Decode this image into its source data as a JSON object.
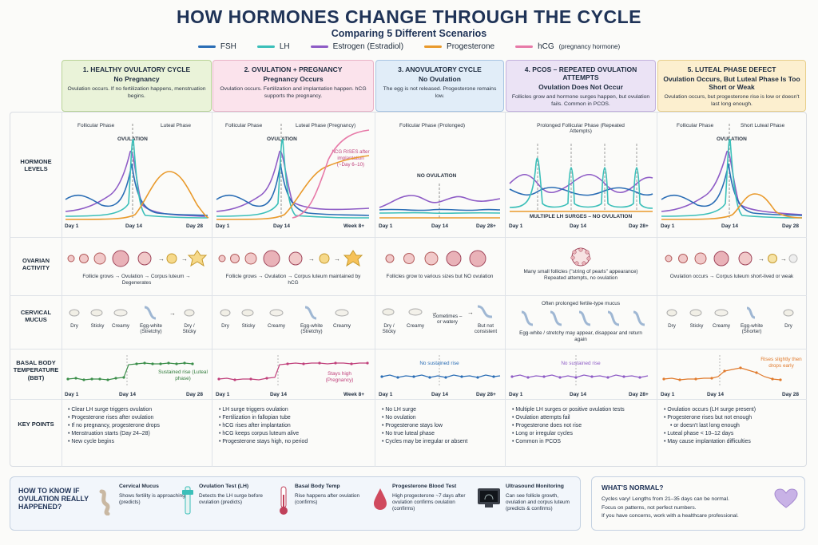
{
  "title": "HOW HORMONES CHANGE THROUGH THE CYCLE",
  "subtitle": "Comparing 5 Different Scenarios",
  "legend": [
    {
      "name": "FSH",
      "color": "#2a6db5"
    },
    {
      "name": "LH",
      "color": "#3bbfb9"
    },
    {
      "name": "Estrogen (Estradiol)",
      "color": "#8e5cc6"
    },
    {
      "name": "Progesterone",
      "color": "#e99a2c"
    },
    {
      "name": "hCG",
      "sub": "(pregnancy hormone)",
      "color": "#e77aa8"
    }
  ],
  "row_labels": {
    "hormones": "HORMONE LEVELS",
    "ovarian": "OVARIAN ACTIVITY",
    "mucus": "CERVICAL MUCUS",
    "bbt": "BASAL BODY TEMPERATURE (BBT)",
    "key": "KEY POINTS"
  },
  "columns": [
    {
      "title": "1. HEALTHY OVULATORY CYCLE",
      "sub": "No Pregnancy",
      "desc": "Ovulation occurs. If no fertilization happens, menstruation begins.",
      "head_color": "#eaf3d9",
      "phase_left": "Follicular Phase",
      "phase_right": "Luteal Phase",
      "marker": "OVULATION",
      "axis": [
        "Day 1",
        "Day 14",
        "Day 28"
      ],
      "ovarian_text": "Follicle grows → Ovulation → Corpus luteum → Degenerates",
      "mucus": [
        "Dry",
        "Sticky",
        "Creamy",
        "Egg-white (Stretchy)",
        "Dry / Sticky"
      ],
      "bbt_note": "Sustained rise (Luteal phase)",
      "bbt_axis": [
        "Day 1",
        "Day 14",
        "Day 28"
      ],
      "key_points": [
        "Clear LH surge triggers ovulation",
        "Progesterone rises after ovulation",
        "If no pregnancy, progesterone drops",
        "Menstruation starts (Day 24–28)",
        "New cycle begins"
      ]
    },
    {
      "title": "2. OVULATION + PREGNANCY",
      "sub": "Pregnancy Occurs",
      "desc": "Ovulation occurs. Fertilization and implantation happen. hCG supports the pregnancy.",
      "head_color": "#fbe3ec",
      "phase_left": "Follicular Phase",
      "phase_right": "Luteal Phase (Pregnancy)",
      "marker": "OVULATION",
      "hcg_note": "hCG RISES after implantation (~Day 6–10)",
      "axis": [
        "Day 1",
        "Day 14",
        "Week 8+"
      ],
      "ovarian_text": "Follicle grows → Ovulation → Corpus luteum maintained by hCG",
      "mucus": [
        "Dry",
        "Sticky",
        "Creamy",
        "Egg-white (Stretchy)",
        "Creamy"
      ],
      "bbt_note": "Stays high (Pregnancy)",
      "bbt_axis": [
        "Day 1",
        "Day 14",
        "Week 8+"
      ],
      "key_points": [
        "LH surge triggers ovulation",
        "Fertilization in fallopian tube",
        "hCG rises after implantation",
        "hCG keeps corpus luteum alive",
        "Progesterone stays high, no period"
      ]
    },
    {
      "title": "3. ANOVULATORY CYCLE",
      "sub": "No Ovulation",
      "desc": "The egg is not released. Progesterone remains low.",
      "head_color": "#e1edf8",
      "phase_left": "Follicular Phase (Prolonged)",
      "marker": "NO OVULATION",
      "axis": [
        "Day 1",
        "Day 14",
        "Day 28+"
      ],
      "ovarian_text": "Follicles grow to various sizes but NO ovulation",
      "mucus": [
        "Dry / Sticky",
        "Creamy",
        "Sometimes – or watery",
        "But not consistent"
      ],
      "bbt_note": "No sustained rise",
      "bbt_axis": [
        "Day 1",
        "Day 14",
        "Day 28+"
      ],
      "key_points": [
        "No LH surge",
        "No ovulation",
        "Progesterone stays low",
        "No true luteal phase",
        "Cycles may be irregular or absent"
      ]
    },
    {
      "title": "4. PCOS – REPEATED OVULATION ATTEMPTS",
      "sub": "Ovulation Does Not Occur",
      "desc": "Follicles grow and hormone surges happen, but ovulation fails. Common in PCOS.",
      "head_color": "#ebe3f5",
      "phase_left": "Prolonged Follicular Phase (Repeated Attempts)",
      "marker": "MULTIPLE LH SURGES – NO OVULATION",
      "axis": [
        "Day 1",
        "Day 14",
        "Day 28+"
      ],
      "ovarian_text": "Many small follicles (\"string of pearls\" appearance) Repeated attempts, no ovulation",
      "mucus_top": "Often prolonged fertile-type mucus",
      "mucus_note": "Egg-white / stretchy may appear, disappear and return again",
      "bbt_note": "No sustained rise",
      "bbt_axis": [
        "Day 1",
        "Day 14",
        "Day 28+"
      ],
      "key_points": [
        "Multiple LH surges or positive ovulation tests",
        "Ovulation attempts fail",
        "Progesterone does not rise",
        "Long or irregular cycles",
        "Common in PCOS"
      ]
    },
    {
      "title": "5. LUTEAL PHASE DEFECT",
      "sub": "Ovulation Occurs, But Luteal Phase Is Too Short or Weak",
      "desc": "Ovulation occurs, but progesterone rise is low or doesn't last long enough.",
      "head_color": "#fcefcf",
      "phase_left": "Follicular Phase",
      "phase_right": "Short Luteal Phase",
      "marker": "OVULATION",
      "axis": [
        "Day 1",
        "Day 14",
        "Day 28"
      ],
      "ovarian_text": "Ovulation occurs → Corpus luteum short-lived or weak",
      "mucus": [
        "Dry",
        "Sticky",
        "Creamy",
        "Egg-white (Shorter)",
        "Dry"
      ],
      "bbt_note": "Rises slightly then drops early",
      "bbt_axis": [
        "Day 1",
        "Day 14",
        "Day 28"
      ],
      "key_points": [
        "Ovulation occurs (LH surge present)",
        "Progesterone rises but not enough",
        "or doesn't last long enough",
        "Luteal phase < 10–12 days",
        "May cause implantation difficulties"
      ]
    }
  ],
  "howto": {
    "title": "HOW TO KNOW IF OVULATION REALLY HAPPENED?",
    "methods": [
      {
        "name": "Cervical Mucus",
        "text": "Shows fertility is approaching (predicts)",
        "icon": "mucus-icon"
      },
      {
        "name": "Ovulation Test (LH)",
        "text": "Detects the LH surge before ovulation (predicts)",
        "icon": "test-strip-icon"
      },
      {
        "name": "Basal Body Temp",
        "text": "Rise happens after ovulation (confirms)",
        "icon": "thermometer-icon"
      },
      {
        "name": "Progesterone Blood Test",
        "text": "High progesterone ~7 days after ovulation confirms ovulation (confirms)",
        "icon": "blood-drop-icon"
      },
      {
        "name": "Ultrasound Monitoring",
        "text": "Can see follicle growth, ovulation and corpus luteum (predicts & confirms)",
        "icon": "ultrasound-icon"
      }
    ]
  },
  "normal": {
    "title": "WHAT'S NORMAL?",
    "lines": [
      "Cycles vary! Lengths from 21–35 days can be normal.",
      "Focus on patterns, not perfect numbers.",
      "If you have concerns, work with a healthcare professional."
    ]
  }
}
